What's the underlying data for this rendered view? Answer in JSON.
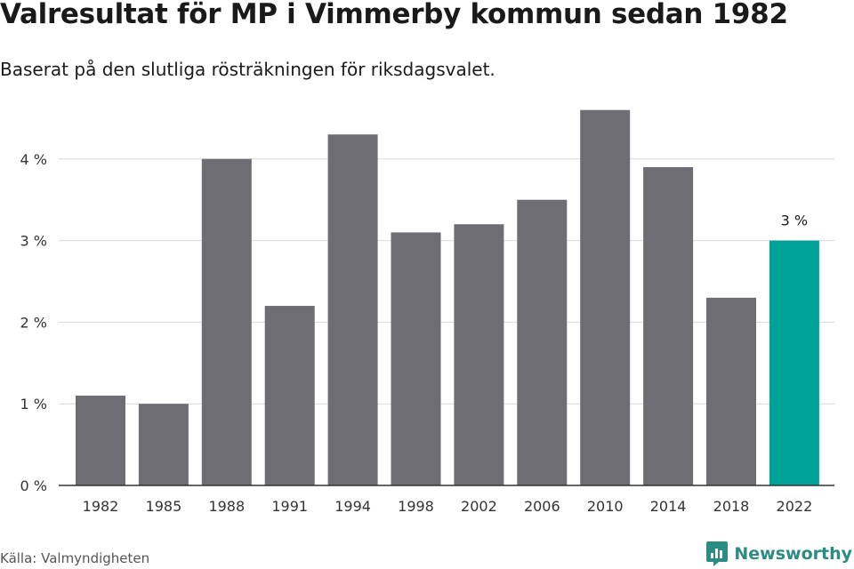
{
  "header": {
    "title": "Valresultat för MP i Vimmerby kommun sedan 1982",
    "subtitle": "Baserat på den slutliga rösträkningen för riksdagsvalet."
  },
  "footer": {
    "source": "Källa: Valmyndigheten",
    "brand": "Newsworthy",
    "brand_icon": "newsworthy-logo-icon"
  },
  "colors": {
    "bar": "#6e6d73",
    "highlight": "#00a398",
    "grid": "#d9d9d9",
    "axis": "#333333",
    "brand": "#2a8c82"
  },
  "chart_data": {
    "type": "bar",
    "categories": [
      "1982",
      "1985",
      "1988",
      "1991",
      "1994",
      "1998",
      "2002",
      "2006",
      "2010",
      "2014",
      "2018",
      "2022"
    ],
    "values": [
      1.1,
      1.0,
      4.0,
      2.2,
      4.3,
      3.1,
      3.2,
      3.5,
      4.6,
      3.9,
      2.3,
      3.0
    ],
    "unit": "%",
    "yticks": [
      0,
      1,
      2,
      3,
      4
    ],
    "ytick_labels": [
      "0 %",
      "1 %",
      "2 %",
      "3 %",
      "4 %"
    ],
    "ylim": [
      0,
      4.7
    ],
    "highlight_index": 11,
    "data_labels": [
      {
        "index": 11,
        "text": "3 %"
      }
    ],
    "grid": true,
    "xlabel": "",
    "ylabel": ""
  }
}
